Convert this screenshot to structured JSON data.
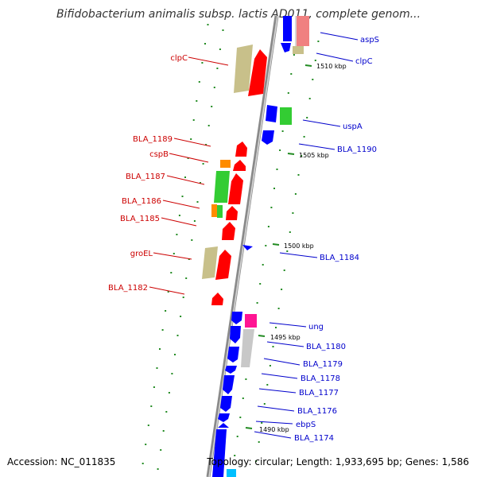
{
  "title": "Bifidobacterium animalis subsp. lactis AD011, complete genom...",
  "accession": "Accession: NC_011835",
  "summary": "Topology: circular; Length: 1,933,695 bp; Genes: 1,586",
  "colors": {
    "backbone": "#808080",
    "left_label": "#cc0000",
    "right_label": "#0000cc",
    "tick": "#228b22",
    "blue_gene": "#0000ff",
    "red_gene": "#ff0000",
    "green_gene": "#33cc33",
    "olive_gene": "#c8c08a",
    "orange_gene": "#ff8c00",
    "pink_gene": "#ff1493",
    "gray_gene": "#c8c8c8",
    "salmon_gene": "#f08080"
  },
  "scale_labels": [
    "1510 kbp",
    "1505 kbp",
    "1500 kbp",
    "1495 kbp",
    "1490 kbp"
  ],
  "left_genes": [
    "clpC",
    "BLA_1189",
    "cspB",
    "BLA_1187",
    "BLA_1186",
    "BLA_1185",
    "groEL",
    "BLA_1182"
  ],
  "right_genes": [
    "aspS",
    "clpC",
    "uspA",
    "BLA_1190",
    "BLA_1184",
    "ung",
    "BLA_1180",
    "BLA_1179",
    "BLA_1178",
    "BLA_1177",
    "BLA_1176",
    "ebpS",
    "BLA_1174"
  ]
}
